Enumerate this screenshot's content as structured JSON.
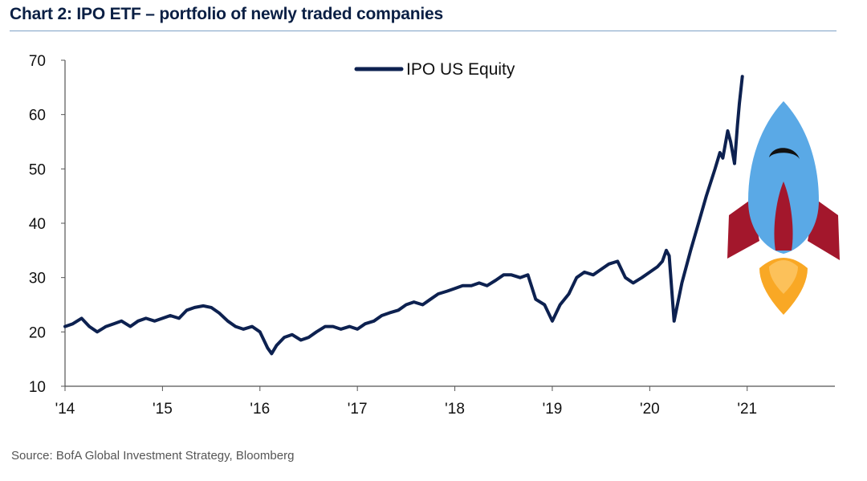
{
  "title": "Chart 2: IPO ETF – portfolio of newly traded companies",
  "source": "Source: BofA Global Investment Strategy, Bloomberg",
  "colors": {
    "series": "#0d2150",
    "title": "#0a1f44",
    "rule": "#7fa1c6",
    "rocket_body": "#5aa9e6",
    "rocket_fin": "#a3172c",
    "rocket_flame": "#f9a825"
  },
  "decoration": {
    "icon": "rocket-icon"
  },
  "chart_data": {
    "type": "line",
    "title": "Chart 2: IPO ETF – portfolio of newly traded companies",
    "xlabel": "",
    "ylabel": "",
    "ylim": [
      10,
      70
    ],
    "xlim": [
      2014.0,
      2021.9
    ],
    "yticks": [
      10,
      20,
      30,
      40,
      50,
      60,
      70
    ],
    "xticks": [
      {
        "value": 2014,
        "label": "'14"
      },
      {
        "value": 2015,
        "label": "'15"
      },
      {
        "value": 2016,
        "label": "'16"
      },
      {
        "value": 2017,
        "label": "'17"
      },
      {
        "value": 2018,
        "label": "'18"
      },
      {
        "value": 2019,
        "label": "'19"
      },
      {
        "value": 2020,
        "label": "'20"
      },
      {
        "value": 2021,
        "label": "'21"
      }
    ],
    "grid": false,
    "legend_position": "top-center",
    "series": [
      {
        "name": "IPO US Equity",
        "x": [
          2014.0,
          2014.08,
          2014.17,
          2014.25,
          2014.33,
          2014.42,
          2014.5,
          2014.58,
          2014.67,
          2014.75,
          2014.83,
          2014.92,
          2015.0,
          2015.08,
          2015.17,
          2015.25,
          2015.33,
          2015.42,
          2015.5,
          2015.58,
          2015.67,
          2015.75,
          2015.83,
          2015.92,
          2016.0,
          2016.08,
          2016.12,
          2016.17,
          2016.25,
          2016.33,
          2016.42,
          2016.5,
          2016.58,
          2016.67,
          2016.75,
          2016.83,
          2016.92,
          2017.0,
          2017.08,
          2017.17,
          2017.25,
          2017.33,
          2017.42,
          2017.5,
          2017.58,
          2017.67,
          2017.75,
          2017.83,
          2017.92,
          2018.0,
          2018.08,
          2018.17,
          2018.25,
          2018.33,
          2018.42,
          2018.5,
          2018.58,
          2018.67,
          2018.75,
          2018.83,
          2018.92,
          2019.0,
          2019.08,
          2019.17,
          2019.25,
          2019.33,
          2019.42,
          2019.5,
          2019.58,
          2019.67,
          2019.75,
          2019.83,
          2019.92,
          2020.0,
          2020.08,
          2020.13,
          2020.17,
          2020.2,
          2020.25,
          2020.33,
          2020.42,
          2020.5,
          2020.58,
          2020.67,
          2020.72,
          2020.75,
          2020.8,
          2020.83,
          2020.87,
          2020.9,
          2020.92,
          2020.95
        ],
        "values": [
          21,
          21.5,
          22.5,
          21,
          20,
          21,
          21.5,
          22,
          21,
          22,
          22.5,
          22,
          22.5,
          23,
          22.5,
          24,
          24.5,
          24.8,
          24.5,
          23.5,
          22,
          21,
          20.5,
          21,
          20,
          17,
          16,
          17.5,
          19,
          19.5,
          18.5,
          19,
          20,
          21,
          21,
          20.5,
          21,
          20.5,
          21.5,
          22,
          23,
          23.5,
          24,
          25,
          25.5,
          25,
          26,
          27,
          27.5,
          28,
          28.5,
          28.5,
          29,
          28.5,
          29.5,
          30.5,
          30.5,
          30,
          30.5,
          26,
          25,
          22,
          25,
          27,
          30,
          31,
          30.5,
          31.5,
          32.5,
          33,
          30,
          29,
          30,
          31,
          32,
          33,
          35,
          34,
          22,
          29,
          35,
          40,
          45,
          50,
          53,
          52,
          57,
          55,
          51,
          58,
          62,
          67
        ]
      }
    ]
  }
}
